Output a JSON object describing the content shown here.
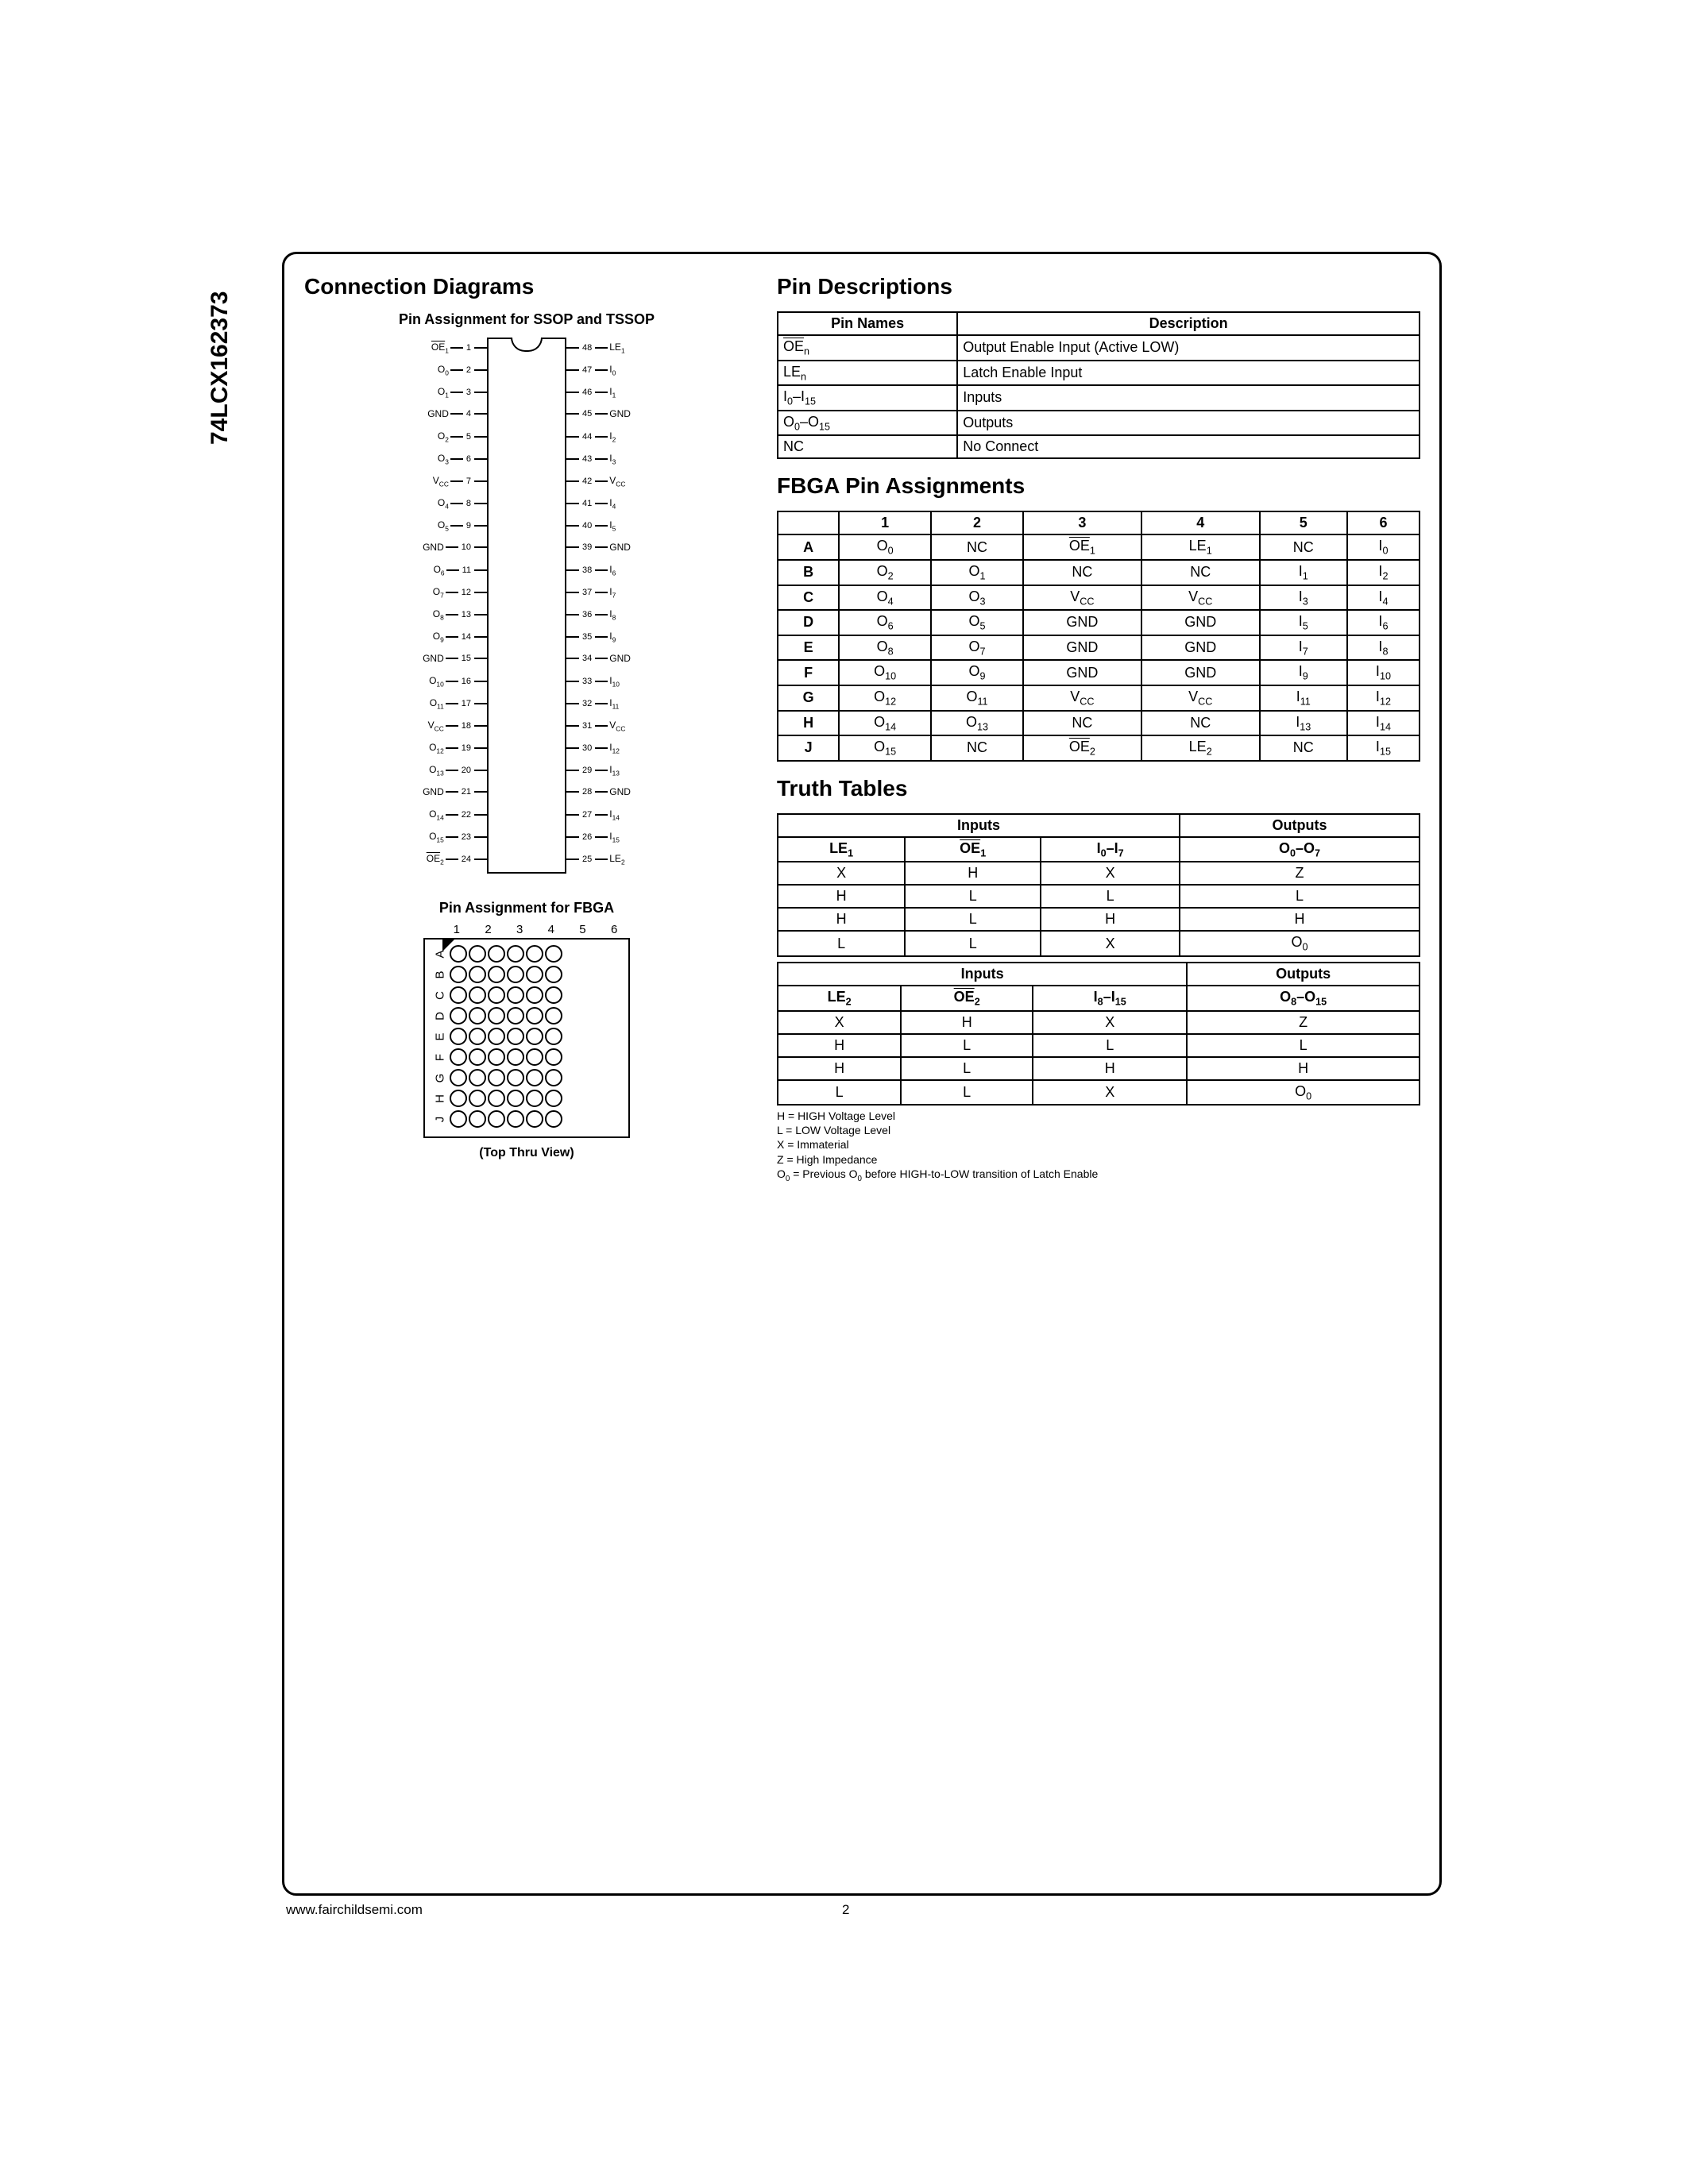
{
  "partNumber": "74LCX162373",
  "footer_url": "www.fairchildsemi.com",
  "page_number": "2",
  "left": {
    "heading": "Connection Diagrams",
    "ssop_title": "Pin Assignment for SSOP and TSSOP",
    "ssop_pins_left": [
      {
        "n": "1",
        "l": "OE1",
        "ov": true,
        "sub": "1"
      },
      {
        "n": "2",
        "l": "O0",
        "sub": "0"
      },
      {
        "n": "3",
        "l": "O1",
        "sub": "1"
      },
      {
        "n": "4",
        "l": "GND"
      },
      {
        "n": "5",
        "l": "O2",
        "sub": "2"
      },
      {
        "n": "6",
        "l": "O3",
        "sub": "3"
      },
      {
        "n": "7",
        "l": "VCC",
        "sub": "CC"
      },
      {
        "n": "8",
        "l": "O4",
        "sub": "4"
      },
      {
        "n": "9",
        "l": "O5",
        "sub": "5"
      },
      {
        "n": "10",
        "l": "GND"
      },
      {
        "n": "11",
        "l": "O6",
        "sub": "6"
      },
      {
        "n": "12",
        "l": "O7",
        "sub": "7"
      },
      {
        "n": "13",
        "l": "O8",
        "sub": "8"
      },
      {
        "n": "14",
        "l": "O9",
        "sub": "9"
      },
      {
        "n": "15",
        "l": "GND"
      },
      {
        "n": "16",
        "l": "O10",
        "sub": "10"
      },
      {
        "n": "17",
        "l": "O11",
        "sub": "11"
      },
      {
        "n": "18",
        "l": "VCC",
        "sub": "CC"
      },
      {
        "n": "19",
        "l": "O12",
        "sub": "12"
      },
      {
        "n": "20",
        "l": "O13",
        "sub": "13"
      },
      {
        "n": "21",
        "l": "GND"
      },
      {
        "n": "22",
        "l": "O14",
        "sub": "14"
      },
      {
        "n": "23",
        "l": "O15",
        "sub": "15"
      },
      {
        "n": "24",
        "l": "OE2",
        "ov": true,
        "sub": "2"
      }
    ],
    "ssop_pins_right": [
      {
        "n": "48",
        "l": "LE1",
        "sub": "1"
      },
      {
        "n": "47",
        "l": "I0",
        "sub": "0"
      },
      {
        "n": "46",
        "l": "I1",
        "sub": "1"
      },
      {
        "n": "45",
        "l": "GND"
      },
      {
        "n": "44",
        "l": "I2",
        "sub": "2"
      },
      {
        "n": "43",
        "l": "I3",
        "sub": "3"
      },
      {
        "n": "42",
        "l": "VCC",
        "sub": "CC"
      },
      {
        "n": "41",
        "l": "I4",
        "sub": "4"
      },
      {
        "n": "40",
        "l": "I5",
        "sub": "5"
      },
      {
        "n": "39",
        "l": "GND"
      },
      {
        "n": "38",
        "l": "I6",
        "sub": "6"
      },
      {
        "n": "37",
        "l": "I7",
        "sub": "7"
      },
      {
        "n": "36",
        "l": "I8",
        "sub": "8"
      },
      {
        "n": "35",
        "l": "I9",
        "sub": "9"
      },
      {
        "n": "34",
        "l": "GND"
      },
      {
        "n": "33",
        "l": "I10",
        "sub": "10"
      },
      {
        "n": "32",
        "l": "I11",
        "sub": "11"
      },
      {
        "n": "31",
        "l": "VCC",
        "sub": "CC"
      },
      {
        "n": "30",
        "l": "I12",
        "sub": "12"
      },
      {
        "n": "29",
        "l": "I13",
        "sub": "13"
      },
      {
        "n": "28",
        "l": "GND"
      },
      {
        "n": "27",
        "l": "I14",
        "sub": "14"
      },
      {
        "n": "26",
        "l": "I15",
        "sub": "15"
      },
      {
        "n": "25",
        "l": "LE2",
        "sub": "2"
      }
    ],
    "fbga_title": "Pin Assignment for FBGA",
    "fbga_col_labels": [
      "1",
      "2",
      "3",
      "4",
      "5",
      "6"
    ],
    "fbga_row_labels": [
      "A",
      "B",
      "C",
      "D",
      "E",
      "F",
      "G",
      "H",
      "J"
    ],
    "topthru": "(Top Thru View)"
  },
  "right": {
    "pindesc_heading": "Pin Descriptions",
    "pindesc_headers": [
      "Pin Names",
      "Description"
    ],
    "pindesc_rows": [
      {
        "name_html": "<span class='overline'>OE</span><sub>n</sub>",
        "desc": "Output Enable Input (Active LOW)"
      },
      {
        "name_html": "LE<sub>n</sub>",
        "desc": "Latch Enable Input"
      },
      {
        "name_html": "I<sub>0</sub>–I<sub>15</sub>",
        "desc": "Inputs"
      },
      {
        "name_html": "O<sub>0</sub>–O<sub>15</sub>",
        "desc": "Outputs"
      },
      {
        "name_html": "NC",
        "desc": "No Connect"
      }
    ],
    "fbga_heading": "FBGA Pin Assignments",
    "fbga_cols": [
      "",
      "1",
      "2",
      "3",
      "4",
      "5",
      "6"
    ],
    "fbga_rows": [
      [
        "A",
        "O<sub>0</sub>",
        "NC",
        "<span class='overline'>OE</span><sub>1</sub>",
        "LE<sub>1</sub>",
        "NC",
        "I<sub>0</sub>"
      ],
      [
        "B",
        "O<sub>2</sub>",
        "O<sub>1</sub>",
        "NC",
        "NC",
        "I<sub>1</sub>",
        "I<sub>2</sub>"
      ],
      [
        "C",
        "O<sub>4</sub>",
        "O<sub>3</sub>",
        "V<sub>CC</sub>",
        "V<sub>CC</sub>",
        "I<sub>3</sub>",
        "I<sub>4</sub>"
      ],
      [
        "D",
        "O<sub>6</sub>",
        "O<sub>5</sub>",
        "GND",
        "GND",
        "I<sub>5</sub>",
        "I<sub>6</sub>"
      ],
      [
        "E",
        "O<sub>8</sub>",
        "O<sub>7</sub>",
        "GND",
        "GND",
        "I<sub>7</sub>",
        "I<sub>8</sub>"
      ],
      [
        "F",
        "O<sub>10</sub>",
        "O<sub>9</sub>",
        "GND",
        "GND",
        "I<sub>9</sub>",
        "I<sub>10</sub>"
      ],
      [
        "G",
        "O<sub>12</sub>",
        "O<sub>11</sub>",
        "V<sub>CC</sub>",
        "V<sub>CC</sub>",
        "I<sub>11</sub>",
        "I<sub>12</sub>"
      ],
      [
        "H",
        "O<sub>14</sub>",
        "O<sub>13</sub>",
        "NC",
        "NC",
        "I<sub>13</sub>",
        "I<sub>14</sub>"
      ],
      [
        "J",
        "O<sub>15</sub>",
        "NC",
        "<span class='overline'>OE</span><sub>2</sub>",
        "LE<sub>2</sub>",
        "NC",
        "I<sub>15</sub>"
      ]
    ],
    "truth_heading": "Truth Tables",
    "truth1": {
      "group_headers": [
        "Inputs",
        "Outputs"
      ],
      "col_headers": [
        "LE<sub>1</sub>",
        "<span class='overline'>OE</span><sub>1</sub>",
        "I<sub>0</sub>–I<sub>7</sub>",
        "O<sub>0</sub>–O<sub>7</sub>"
      ],
      "rows": [
        [
          "X",
          "H",
          "X",
          "Z"
        ],
        [
          "H",
          "L",
          "L",
          "L"
        ],
        [
          "H",
          "L",
          "H",
          "H"
        ],
        [
          "L",
          "L",
          "X",
          "O<sub>0</sub>"
        ]
      ]
    },
    "truth2": {
      "group_headers": [
        "Inputs",
        "Outputs"
      ],
      "col_headers": [
        "LE<sub>2</sub>",
        "<span class='overline'>OE</span><sub>2</sub>",
        "I<sub>8</sub>–I<sub>15</sub>",
        "O<sub>8</sub>–O<sub>15</sub>"
      ],
      "rows": [
        [
          "X",
          "H",
          "X",
          "Z"
        ],
        [
          "H",
          "L",
          "L",
          "L"
        ],
        [
          "H",
          "L",
          "H",
          "H"
        ],
        [
          "L",
          "L",
          "X",
          "O<sub>0</sub>"
        ]
      ]
    },
    "notes": [
      "H = HIGH Voltage Level",
      "L = LOW Voltage Level",
      "X = Immaterial",
      "Z = High Impedance",
      "O<sub>0</sub> = Previous O<sub>0</sub> before HIGH-to-LOW transition of Latch Enable"
    ]
  }
}
